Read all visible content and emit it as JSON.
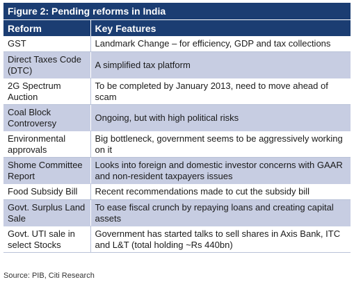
{
  "figure": {
    "title": "Figure 2: Pending reforms in India",
    "headers": [
      "Reform",
      "Key Features"
    ],
    "rows": [
      {
        "reform": "GST",
        "features": "Landmark Change – for efficiency, GDP and tax collections"
      },
      {
        "reform": "Direct Taxes Code (DTC)",
        "features": "A simplified tax platform"
      },
      {
        "reform": "2G Spectrum Auction",
        "features": "To be completed by January 2013, need to move ahead of scam"
      },
      {
        "reform": "Coal Block Controversy",
        "features": "Ongoing, but with high political risks"
      },
      {
        "reform": "Environmental approvals",
        "features": "Big bottleneck, government seems to be aggressively working on it"
      },
      {
        "reform": "Shome Committee Report",
        "features": "Looks into foreign and domestic investor concerns with GAAR and non-resident taxpayers issues"
      },
      {
        "reform": "Food Subsidy Bill",
        "features": "Recent recommendations made to cut the subsidy bill"
      },
      {
        "reform": "Govt. Surplus Land Sale",
        "features": "To ease fiscal crunch by repaying loans and creating capital assets"
      },
      {
        "reform": "Govt. UTI sale in select Stocks",
        "features": "Government has started talks to sell shares in Axis Bank, ITC and L&T (total holding ~Rs 440bn)"
      }
    ],
    "source": "Source: PIB, Citi Research"
  },
  "colors": {
    "header_bg": "#1b3d72",
    "band_bg": "#c7cde2"
  }
}
